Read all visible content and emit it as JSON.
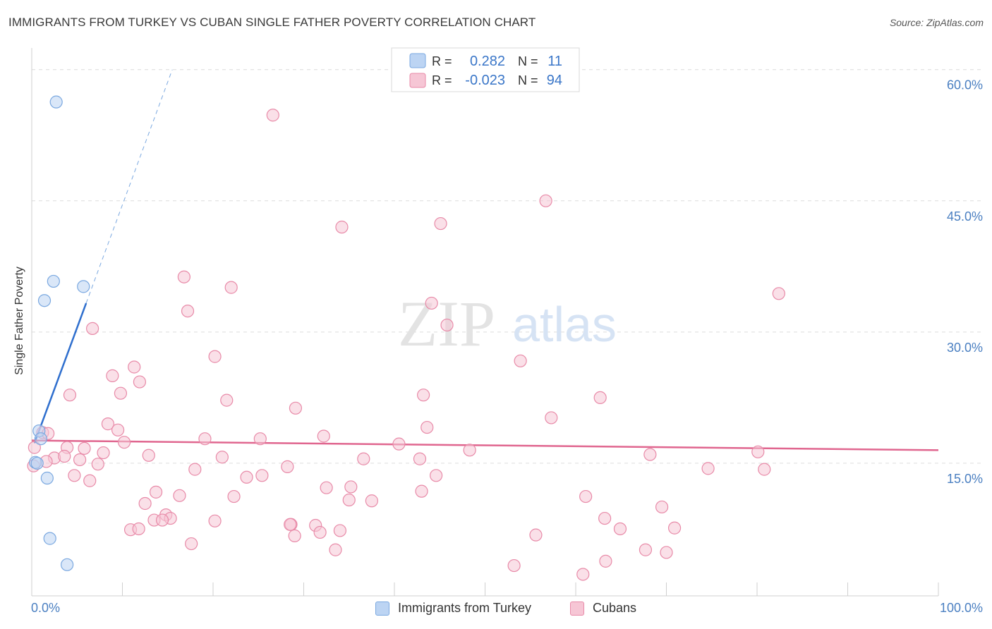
{
  "chart_data": {
    "type": "scatter",
    "title": "IMMIGRANTS FROM TURKEY VS CUBAN SINGLE FATHER POVERTY CORRELATION CHART",
    "source": "Source: ZipAtlas.com",
    "watermark": {
      "zip": "ZIP",
      "atlas": "atlas"
    },
    "xlabel": "",
    "ylabel": "Single Father Poverty",
    "xlim": [
      0,
      100
    ],
    "ylim": [
      0,
      60
    ],
    "x_tick_labels": {
      "left": "0.0%",
      "right": "100.0%"
    },
    "y_ticks": [
      {
        "value": 15,
        "label": "15.0%"
      },
      {
        "value": 30,
        "label": "30.0%"
      },
      {
        "value": 45,
        "label": "45.0%"
      },
      {
        "value": 60,
        "label": "60.0%"
      }
    ],
    "legend_stats": [
      {
        "r_label": "R =",
        "r_value": "0.282",
        "n_label": "N =",
        "n_value": "11"
      },
      {
        "r_label": "R =",
        "r_value": "-0.023",
        "n_label": "N =",
        "n_value": "94"
      }
    ],
    "series": [
      {
        "name": "Immigrants from Turkey",
        "color": "#7aa8e0",
        "fill": "#bcd4f3",
        "line_color": "#2f6fce",
        "trend": {
          "x0": 0.3,
          "y0": 17.3,
          "x1": 6.0,
          "y1": 33.3
        },
        "trend_ext": {
          "x1": 15.5,
          "y1": 60.0
        },
        "points": [
          [
            2.7,
            56.3
          ],
          [
            2.4,
            35.8
          ],
          [
            5.7,
            35.2
          ],
          [
            1.4,
            33.6
          ],
          [
            0.8,
            18.7
          ],
          [
            1.0,
            17.8
          ],
          [
            0.4,
            15.1
          ],
          [
            0.6,
            15.0
          ],
          [
            1.7,
            13.3
          ],
          [
            2.0,
            6.4
          ],
          [
            3.9,
            3.4
          ]
        ]
      },
      {
        "name": "Cubans",
        "color": "#e88aa8",
        "fill": "#f6c6d5",
        "line_color": "#e0668f",
        "trend": {
          "x0": 0.0,
          "y0": 17.6,
          "x1": 100.0,
          "y1": 16.5
        },
        "points": [
          [
            26.6,
            54.8
          ],
          [
            56.7,
            45.0
          ],
          [
            34.2,
            42.0
          ],
          [
            45.1,
            42.4
          ],
          [
            16.8,
            36.3
          ],
          [
            22.0,
            35.1
          ],
          [
            82.4,
            34.4
          ],
          [
            17.2,
            32.4
          ],
          [
            44.1,
            33.3
          ],
          [
            45.8,
            30.8
          ],
          [
            6.7,
            30.4
          ],
          [
            20.2,
            27.2
          ],
          [
            53.9,
            26.7
          ],
          [
            11.3,
            26.0
          ],
          [
            8.9,
            25.0
          ],
          [
            11.9,
            24.3
          ],
          [
            4.2,
            22.8
          ],
          [
            9.8,
            23.0
          ],
          [
            21.5,
            22.2
          ],
          [
            43.2,
            22.8
          ],
          [
            62.7,
            22.5
          ],
          [
            29.1,
            21.3
          ],
          [
            57.3,
            20.2
          ],
          [
            8.4,
            19.5
          ],
          [
            43.6,
            19.1
          ],
          [
            9.5,
            18.8
          ],
          [
            1.2,
            18.5
          ],
          [
            1.8,
            18.4
          ],
          [
            32.2,
            18.1
          ],
          [
            19.1,
            17.8
          ],
          [
            25.2,
            17.8
          ],
          [
            10.2,
            17.4
          ],
          [
            40.5,
            17.2
          ],
          [
            3.9,
            16.8
          ],
          [
            5.8,
            16.7
          ],
          [
            48.3,
            16.5
          ],
          [
            80.1,
            16.3
          ],
          [
            7.9,
            16.2
          ],
          [
            12.9,
            15.9
          ],
          [
            21.0,
            15.7
          ],
          [
            68.2,
            16.0
          ],
          [
            2.5,
            15.6
          ],
          [
            3.6,
            15.8
          ],
          [
            5.3,
            15.4
          ],
          [
            1.6,
            15.2
          ],
          [
            7.3,
            14.9
          ],
          [
            36.6,
            15.5
          ],
          [
            42.8,
            15.5
          ],
          [
            18.0,
            14.3
          ],
          [
            28.2,
            14.6
          ],
          [
            74.6,
            14.4
          ],
          [
            80.8,
            14.3
          ],
          [
            4.7,
            13.6
          ],
          [
            25.4,
            13.6
          ],
          [
            23.7,
            13.4
          ],
          [
            44.6,
            13.6
          ],
          [
            6.4,
            13.0
          ],
          [
            32.5,
            12.2
          ],
          [
            35.2,
            12.3
          ],
          [
            13.7,
            11.7
          ],
          [
            16.3,
            11.3
          ],
          [
            22.3,
            11.2
          ],
          [
            43.0,
            11.8
          ],
          [
            61.1,
            11.2
          ],
          [
            12.5,
            10.4
          ],
          [
            35.0,
            10.8
          ],
          [
            37.5,
            10.7
          ],
          [
            69.5,
            10.0
          ],
          [
            14.8,
            9.1
          ],
          [
            15.3,
            8.7
          ],
          [
            13.5,
            8.5
          ],
          [
            14.4,
            8.5
          ],
          [
            20.2,
            8.4
          ],
          [
            28.6,
            8.0
          ],
          [
            31.3,
            7.9
          ],
          [
            63.2,
            8.7
          ],
          [
            10.9,
            7.4
          ],
          [
            28.5,
            8.0
          ],
          [
            31.8,
            7.1
          ],
          [
            34.0,
            7.3
          ],
          [
            11.8,
            7.5
          ],
          [
            70.9,
            7.6
          ],
          [
            64.9,
            7.5
          ],
          [
            55.6,
            6.8
          ],
          [
            29.0,
            6.7
          ],
          [
            17.6,
            5.8
          ],
          [
            33.5,
            5.1
          ],
          [
            67.7,
            5.1
          ],
          [
            70.0,
            4.8
          ],
          [
            63.3,
            3.8
          ],
          [
            53.2,
            3.3
          ],
          [
            60.8,
            2.3
          ],
          [
            0.3,
            16.8
          ],
          [
            0.2,
            14.7
          ]
        ]
      }
    ]
  }
}
